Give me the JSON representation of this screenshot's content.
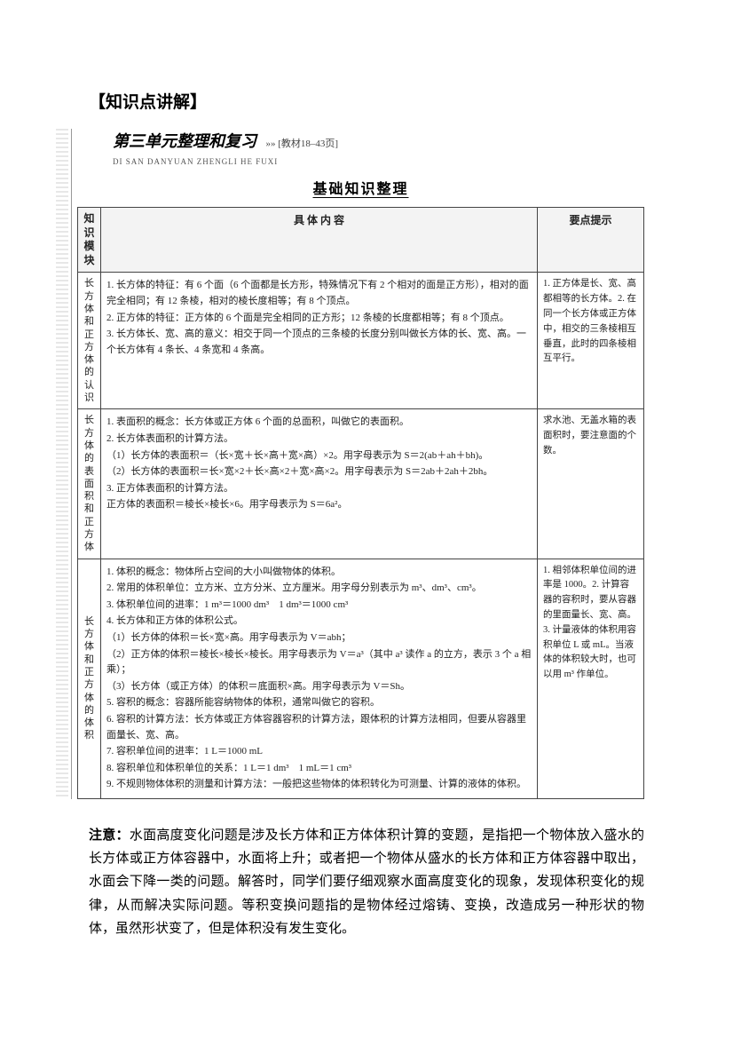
{
  "title": "【知识点讲解】",
  "unit": {
    "heading": "第三单元整理和复习",
    "pageref": "»» [教材18–43页]",
    "pinyin": "DI SAN DANYUAN ZHENGLI HE FUXI"
  },
  "banner": "基础知识整理",
  "table": {
    "headers": [
      "知识模块",
      "具 体 内 容",
      "要点提示"
    ],
    "rows": [
      {
        "module": "长方体和正方体的认识",
        "content": [
          "1. 长方体的特征：有 6 个面（6 个面都是长方形，特殊情况下有 2 个相对的面是正方形），相对的面完全相同；有 12 条棱，相对的棱长度相等；有 8 个顶点。",
          "2. 正方体的特征：正方体的 6 个面是完全相同的正方形；12 条棱的长度都相等；有 8 个顶点。",
          "3. 长方体长、宽、高的意义：相交于同一个顶点的三条棱的长度分别叫做长方体的长、宽、高。一个长方体有 4 条长、4 条宽和 4 条高。"
        ],
        "tips": "1. 正方体是长、宽、高都相等的长方体。2. 在同一个长方体或正方体中，相交的三条棱相互垂直，此时的四条棱相互平行。"
      },
      {
        "module": "长方体的表面积和正方体",
        "content": [
          "1. 表面积的概念：长方体或正方体 6 个面的总面积，叫做它的表面积。",
          "2. 长方体表面积的计算方法。",
          "（1）长方体的表面积＝（长×宽＋长×高＋宽×高）×2。用字母表示为 S＝2(ab＋ah＋bh)。",
          "（2）长方体的表面积＝长×宽×2＋长×高×2＋宽×高×2。用字母表示为 S＝2ab＋2ah＋2bh。",
          "3. 正方体表面积的计算方法。",
          "正方体的表面积＝棱长×棱长×6。用字母表示为 S＝6a²。"
        ],
        "tips": "求水池、无盖水箱的表面积时，要注意面的个数。"
      },
      {
        "module": "长方体和正方体的体积",
        "content": [
          "1. 体积的概念：物体所占空间的大小叫做物体的体积。",
          "2. 常用的体积单位：立方米、立方分米、立方厘米。用字母分别表示为 m³、dm³、cm³。",
          "3. 体积单位间的进率：1 m³＝1000 dm³　1 dm³＝1000 cm³",
          "4. 长方体和正方体的体积公式。",
          "（1）长方体的体积＝长×宽×高。用字母表示为 V＝abh；",
          "（2）正方体的体积＝棱长×棱长×棱长。用字母表示为 V＝a³（其中 a³ 读作 a 的立方，表示 3 个 a 相乘）；",
          "（3）长方体（或正方体）的体积＝底面积×高。用字母表示为 V＝Sh。",
          "5. 容积的概念：容器所能容纳物体的体积，通常叫做它的容积。",
          "6. 容积的计算方法：长方体或正方体容器容积的计算方法，跟体积的计算方法相同，但要从容器里面量长、宽、高。",
          "7. 容积单位间的进率：1 L＝1000 mL",
          "8. 容积单位和体积单位的关系：1 L＝1 dm³　1 mL＝1 cm³",
          "9. 不规则物体体积的测量和计算方法：一般把这些物体的体积转化为可测量、计算的液体的体积。"
        ],
        "tips": "1. 相邻体积单位间的进率是 1000。2. 计算容器的容积时，要从容器的里面量长、宽、高。3. 计量液体的体积用容积单位 L 或 mL。当液体的体积较大时，也可以用 m³ 作单位。"
      }
    ]
  },
  "note": {
    "label": "注意：",
    "text": "水面高度变化问题是涉及长方体和正方体体积计算的变题，是指把一个物体放入盛水的长方体或正方体容器中，水面将上升；或者把一个物体从盛水的长方体和正方体容器中取出，水面会下降一类的问题。解答时，同学们要仔细观察水面高度变化的现象，发现体积变化的规律，从而解决实际问题。等积变换问题指的是物体经过熔铸、变换，改造成另一种形状的物体，虽然形状变了，但是体积没有发生变化。"
  }
}
